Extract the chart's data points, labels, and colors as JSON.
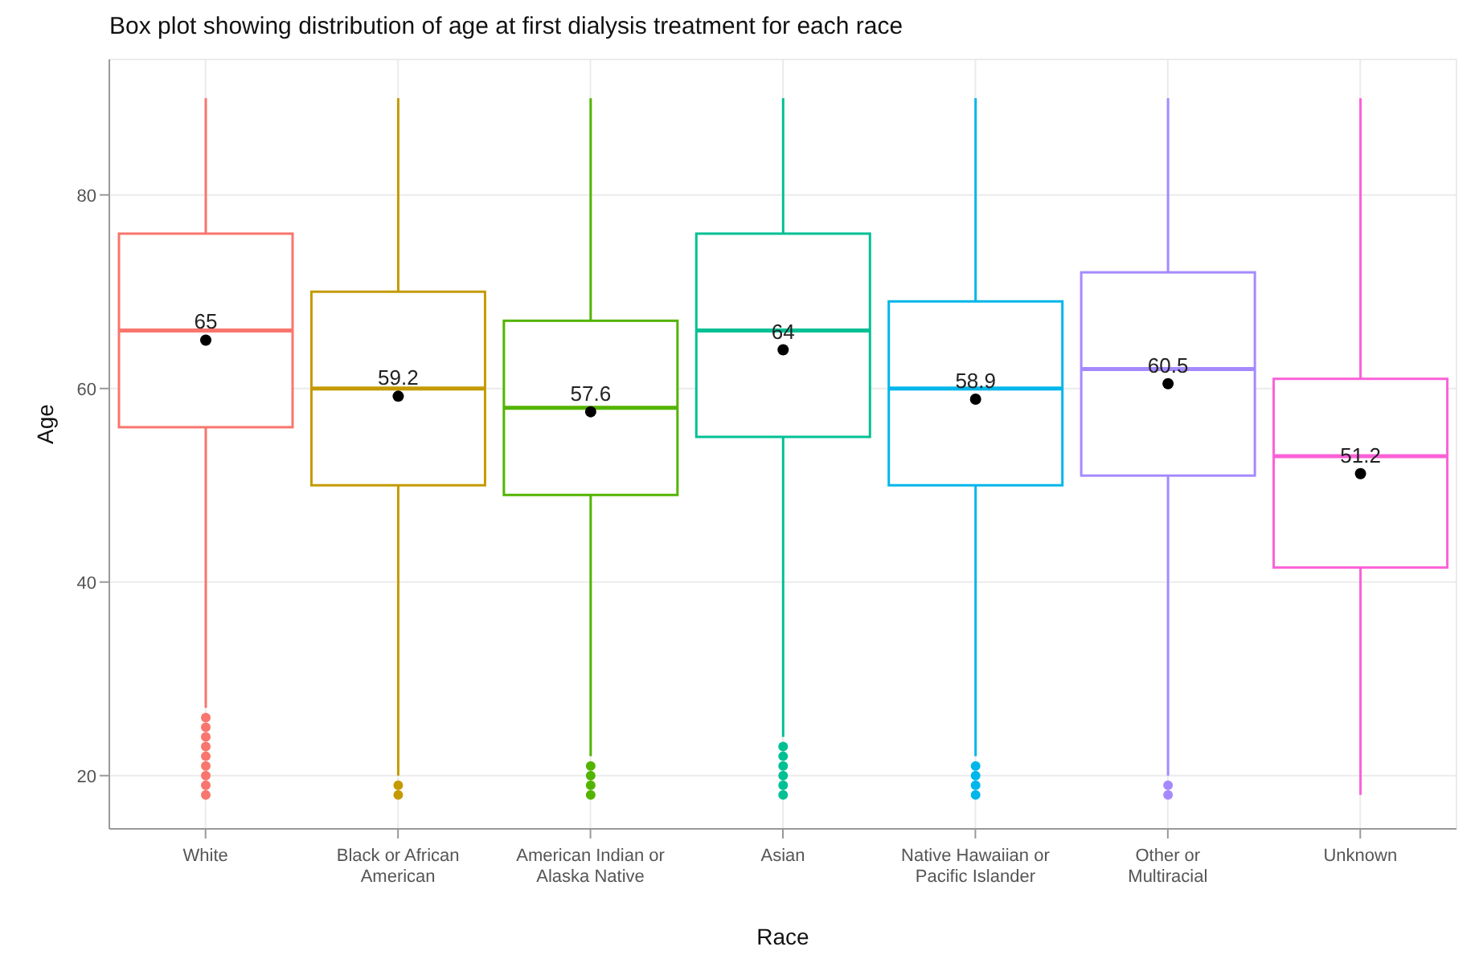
{
  "chart_data": {
    "type": "box",
    "title": "Box plot showing distribution of age at first dialysis treatment for each race",
    "xlabel": "Race",
    "ylabel": "Age",
    "categories": [
      "White",
      "Black or African American",
      "American Indian or Alaska Native",
      "Asian",
      "Native Hawaiian or Pacific Islander",
      "Other or Multiracial",
      "Unknown"
    ],
    "colors": [
      "#f8766d",
      "#c49a00",
      "#53b400",
      "#00c094",
      "#00b6eb",
      "#a58aff",
      "#fb61d7"
    ],
    "boxes": [
      {
        "low": 27,
        "q1": 56,
        "median": 66,
        "q3": 76,
        "high": 90,
        "mean": 65,
        "outliers": [
          18,
          19,
          20,
          21,
          22,
          23,
          24,
          25,
          26
        ]
      },
      {
        "low": 20,
        "q1": 50,
        "median": 60,
        "q3": 70,
        "high": 90,
        "mean": 59.2,
        "outliers": [
          18,
          19
        ]
      },
      {
        "low": 22,
        "q1": 49,
        "median": 58,
        "q3": 67,
        "high": 90,
        "mean": 57.6,
        "outliers": [
          18,
          19,
          20,
          21
        ]
      },
      {
        "low": 24,
        "q1": 55,
        "median": 66,
        "q3": 76,
        "high": 90,
        "mean": 64,
        "outliers": [
          18,
          19,
          20,
          21,
          22,
          23
        ]
      },
      {
        "low": 22,
        "q1": 50,
        "median": 60,
        "q3": 69,
        "high": 90,
        "mean": 58.9,
        "outliers": [
          18,
          19,
          20,
          21
        ]
      },
      {
        "low": 20,
        "q1": 51,
        "median": 62,
        "q3": 72,
        "high": 90,
        "mean": 60.5,
        "outliers": [
          18,
          19
        ]
      },
      {
        "low": 18,
        "q1": 41.5,
        "median": 53,
        "q3": 61,
        "high": 90,
        "mean": 51.2
      }
    ],
    "annotations": [
      "65",
      "59.2",
      "57.6",
      "64",
      "58.9",
      "60.5",
      "51.2"
    ],
    "ylim": [
      14.5,
      94
    ],
    "yticks": [
      20,
      40,
      60,
      80
    ],
    "grid": true
  }
}
